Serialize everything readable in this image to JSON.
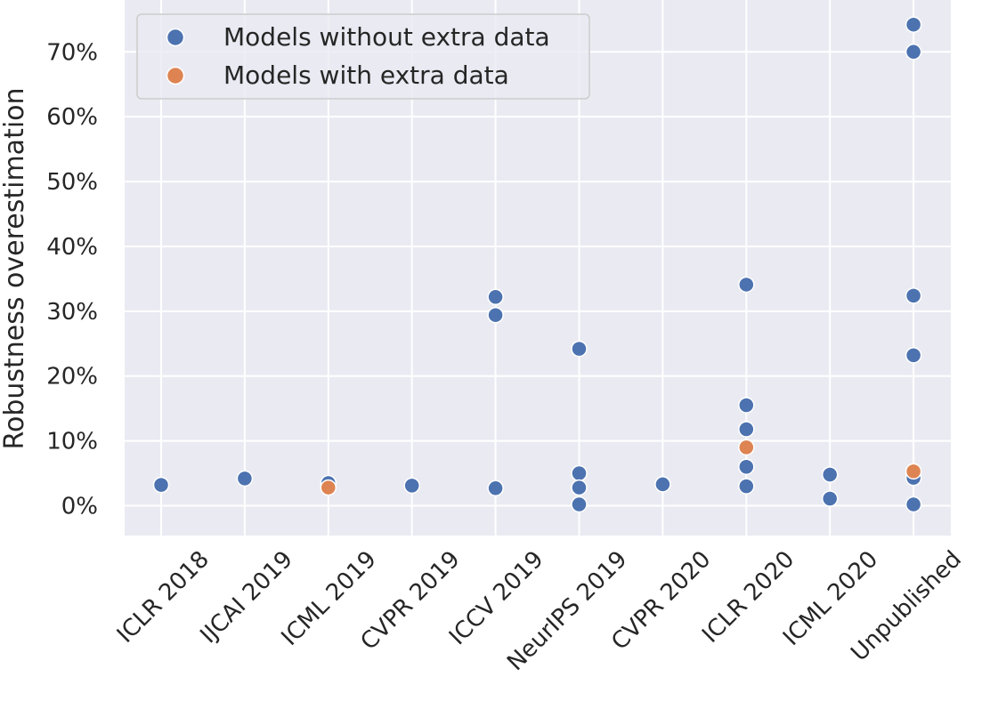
{
  "chart_data": {
    "type": "scatter",
    "title": "",
    "xlabel": "",
    "ylabel": "Robustness overestimation",
    "categories": [
      "ICLR 2018",
      "IJCAI 2019",
      "ICML 2019",
      "CVPR 2019",
      "ICCV 2019",
      "NeurIPS 2019",
      "CVPR 2020",
      "ICLR 2020",
      "ICML 2020",
      "Unpublished"
    ],
    "yticks": [
      0,
      10,
      20,
      30,
      40,
      50,
      60,
      70
    ],
    "ytick_labels": [
      "0%",
      "10%",
      "20%",
      "30%",
      "40%",
      "50%",
      "60%",
      "70%"
    ],
    "ylim": [
      -4.6,
      78
    ],
    "grid": true,
    "legend_position": "top-left",
    "series": [
      {
        "name": "Models without extra data",
        "color": "#4c72b0",
        "points": [
          {
            "x": "ICLR 2018",
            "y": 3.2
          },
          {
            "x": "IJCAI 2019",
            "y": 4.2
          },
          {
            "x": "ICML 2019",
            "y": 3.5
          },
          {
            "x": "CVPR 2019",
            "y": 3.1
          },
          {
            "x": "ICCV 2019",
            "y": 32.2
          },
          {
            "x": "ICCV 2019",
            "y": 29.4
          },
          {
            "x": "ICCV 2019",
            "y": 2.7
          },
          {
            "x": "NeurIPS 2019",
            "y": 24.2
          },
          {
            "x": "NeurIPS 2019",
            "y": 5.0
          },
          {
            "x": "NeurIPS 2019",
            "y": 2.8
          },
          {
            "x": "NeurIPS 2019",
            "y": 0.2
          },
          {
            "x": "CVPR 2020",
            "y": 3.3
          },
          {
            "x": "ICLR 2020",
            "y": 34.1
          },
          {
            "x": "ICLR 2020",
            "y": 15.5
          },
          {
            "x": "ICLR 2020",
            "y": 11.8
          },
          {
            "x": "ICLR 2020",
            "y": 6.0
          },
          {
            "x": "ICLR 2020",
            "y": 3.0
          },
          {
            "x": "ICML 2020",
            "y": 4.8
          },
          {
            "x": "ICML 2020",
            "y": 1.1
          },
          {
            "x": "Unpublished",
            "y": 74.2
          },
          {
            "x": "Unpublished",
            "y": 70.0
          },
          {
            "x": "Unpublished",
            "y": 32.4
          },
          {
            "x": "Unpublished",
            "y": 23.2
          },
          {
            "x": "Unpublished",
            "y": 4.3
          },
          {
            "x": "Unpublished",
            "y": 0.2
          }
        ]
      },
      {
        "name": "Models with extra data",
        "color": "#dd8452",
        "points": [
          {
            "x": "ICML 2019",
            "y": 2.8
          },
          {
            "x": "ICLR 2020",
            "y": 9.0
          },
          {
            "x": "Unpublished",
            "y": 5.3
          }
        ]
      }
    ]
  }
}
